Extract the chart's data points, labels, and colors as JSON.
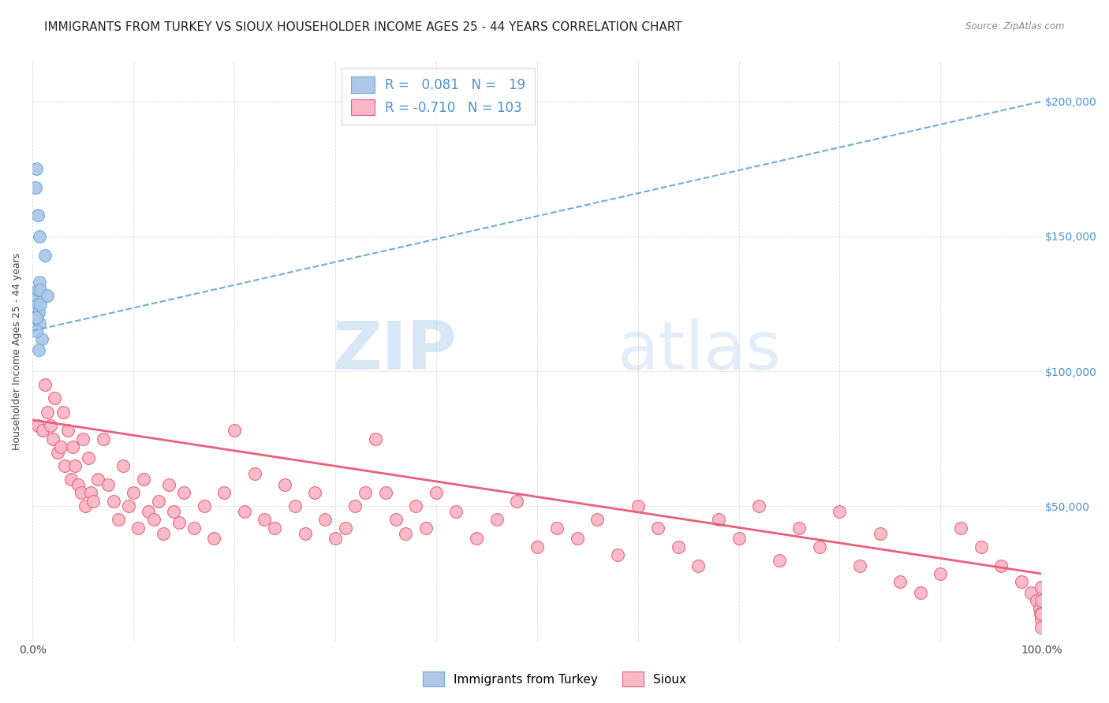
{
  "title": "IMMIGRANTS FROM TURKEY VS SIOUX HOUSEHOLDER INCOME AGES 25 - 44 YEARS CORRELATION CHART",
  "source": "Source: ZipAtlas.com",
  "ylabel": "Householder Income Ages 25 - 44 years",
  "yticks": [
    0,
    50000,
    100000,
    150000,
    200000
  ],
  "ytick_labels": [
    "",
    "$50,000",
    "$100,000",
    "$150,000",
    "$200,000"
  ],
  "watermark_zip": "ZIP",
  "watermark_atlas": "atlas",
  "legend_blue_R": "0.081",
  "legend_blue_N": "19",
  "legend_pink_R": "-0.710",
  "legend_pink_N": "103",
  "legend_label_blue": "Immigrants from Turkey",
  "legend_label_pink": "Sioux",
  "blue_face_color": "#aec6e8",
  "blue_edge_color": "#6baed6",
  "pink_face_color": "#f9b8c8",
  "pink_edge_color": "#e8607a",
  "blue_line_color": "#6baed6",
  "pink_line_color": "#e8607a",
  "background_color": "#ffffff",
  "grid_color": "#cccccc",
  "title_fontsize": 11,
  "axis_label_fontsize": 9,
  "tick_label_fontsize": 10,
  "blue_scatter_x": [
    0.4,
    0.5,
    0.7,
    1.2,
    0.3,
    0.4,
    0.5,
    0.6,
    0.3,
    0.7,
    0.5,
    0.9,
    0.4,
    0.6,
    0.8,
    0.7,
    0.4,
    0.8,
    1.5
  ],
  "blue_scatter_y": [
    175000,
    158000,
    150000,
    143000,
    168000,
    128000,
    125000,
    122000,
    120000,
    118000,
    130000,
    112000,
    115000,
    108000,
    125000,
    133000,
    120000,
    130000,
    128000
  ],
  "pink_scatter_x": [
    0.5,
    1.0,
    1.2,
    1.5,
    1.8,
    2.0,
    2.2,
    2.5,
    2.8,
    3.0,
    3.2,
    3.5,
    3.8,
    4.0,
    4.2,
    4.5,
    4.8,
    5.0,
    5.2,
    5.5,
    5.8,
    6.0,
    6.5,
    7.0,
    7.5,
    8.0,
    8.5,
    9.0,
    9.5,
    10.0,
    10.5,
    11.0,
    11.5,
    12.0,
    12.5,
    13.0,
    13.5,
    14.0,
    14.5,
    15.0,
    16.0,
    17.0,
    18.0,
    19.0,
    20.0,
    21.0,
    22.0,
    23.0,
    24.0,
    25.0,
    26.0,
    27.0,
    28.0,
    29.0,
    30.0,
    31.0,
    32.0,
    33.0,
    34.0,
    35.0,
    36.0,
    37.0,
    38.0,
    39.0,
    40.0,
    42.0,
    44.0,
    46.0,
    48.0,
    50.0,
    52.0,
    54.0,
    56.0,
    58.0,
    60.0,
    62.0,
    64.0,
    66.0,
    68.0,
    70.0,
    72.0,
    74.0,
    76.0,
    78.0,
    80.0,
    82.0,
    84.0,
    86.0,
    88.0,
    90.0,
    92.0,
    94.0,
    96.0,
    98.0,
    99.0,
    99.5,
    99.8,
    99.9,
    100.0,
    100.0,
    100.0,
    100.0,
    100.0
  ],
  "pink_scatter_y": [
    80000,
    78000,
    95000,
    85000,
    80000,
    75000,
    90000,
    70000,
    72000,
    85000,
    65000,
    78000,
    60000,
    72000,
    65000,
    58000,
    55000,
    75000,
    50000,
    68000,
    55000,
    52000,
    60000,
    75000,
    58000,
    52000,
    45000,
    65000,
    50000,
    55000,
    42000,
    60000,
    48000,
    45000,
    52000,
    40000,
    58000,
    48000,
    44000,
    55000,
    42000,
    50000,
    38000,
    55000,
    78000,
    48000,
    62000,
    45000,
    42000,
    58000,
    50000,
    40000,
    55000,
    45000,
    38000,
    42000,
    50000,
    55000,
    75000,
    55000,
    45000,
    40000,
    50000,
    42000,
    55000,
    48000,
    38000,
    45000,
    52000,
    35000,
    42000,
    38000,
    45000,
    32000,
    50000,
    42000,
    35000,
    28000,
    45000,
    38000,
    50000,
    30000,
    42000,
    35000,
    48000,
    28000,
    40000,
    22000,
    18000,
    25000,
    42000,
    35000,
    28000,
    22000,
    18000,
    15000,
    12000,
    10000,
    8000,
    20000,
    15000,
    10000,
    5000
  ],
  "xlim": [
    0,
    100
  ],
  "ylim": [
    0,
    215000
  ],
  "blue_line_x": [
    0,
    100
  ],
  "blue_line_y": [
    115000,
    200000
  ],
  "pink_line_x": [
    0,
    100
  ],
  "pink_line_y": [
    82000,
    25000
  ]
}
